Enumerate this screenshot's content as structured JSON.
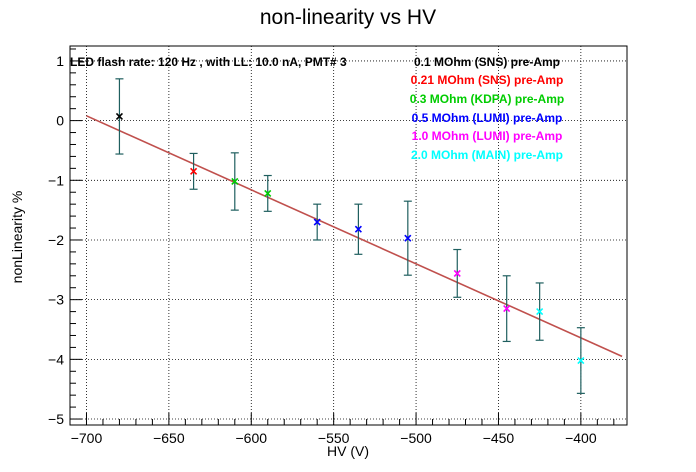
{
  "chart_data": {
    "type": "scatter",
    "title": "non-linearity vs HV",
    "xlabel": "HV (V)",
    "ylabel": "nonLinearity %",
    "xlim": [
      -710,
      -372
    ],
    "ylim": [
      -5.1,
      1.25
    ],
    "x_ticks": [
      -700,
      -650,
      -600,
      -550,
      -500,
      -450,
      -400
    ],
    "y_ticks": [
      1,
      0,
      -1,
      -2,
      -3,
      -4,
      -5
    ],
    "grid": true,
    "info_text": "LED flash rate: 120 Hz , with LL: 10.0 nA, PMT# 3",
    "series": [
      {
        "name": "0.1 MOhm (SNS) pre-Amp",
        "color": "#000000",
        "points": [
          {
            "x": -680,
            "y": 0.07,
            "err": 0.63
          }
        ]
      },
      {
        "name": "0.21 MOhm (SNS) pre-Amp",
        "color": "#ff0000",
        "points": [
          {
            "x": -635,
            "y": -0.85,
            "err": 0.3
          }
        ]
      },
      {
        "name": "0.3 MOhm (KDPA) pre-Amp",
        "color": "#00cc00",
        "points": [
          {
            "x": -610,
            "y": -1.02,
            "err": 0.48
          },
          {
            "x": -590,
            "y": -1.22,
            "err": 0.3
          }
        ]
      },
      {
        "name": "0.5 MOhm (LUMI) pre-Amp",
        "color": "#0000ff",
        "points": [
          {
            "x": -560,
            "y": -1.7,
            "err": 0.3
          },
          {
            "x": -535,
            "y": -1.82,
            "err": 0.42
          },
          {
            "x": -505,
            "y": -1.97,
            "err": 0.62
          }
        ]
      },
      {
        "name": "1.0 MOhm (LUMI) pre-Amp",
        "color": "#ff00ff",
        "points": [
          {
            "x": -475,
            "y": -2.56,
            "err": 0.4
          },
          {
            "x": -445,
            "y": -3.15,
            "err": 0.55
          }
        ]
      },
      {
        "name": "2.0 MOhm (MAIN) pre-Amp",
        "color": "#00ffff",
        "points": [
          {
            "x": -425,
            "y": -3.2,
            "err": 0.48
          },
          {
            "x": -400,
            "y": -4.02,
            "err": 0.55
          }
        ]
      }
    ],
    "fit": {
      "color": "#c0504d",
      "x": [
        -700,
        -375
      ],
      "y": [
        0.08,
        -3.95
      ]
    }
  }
}
